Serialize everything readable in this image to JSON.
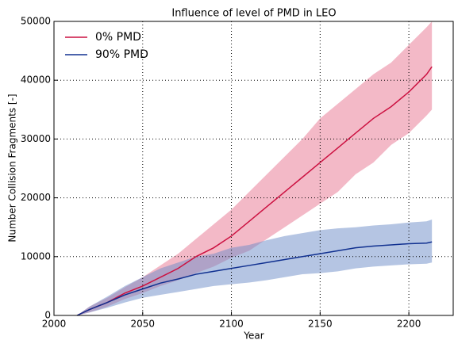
{
  "chart_data": {
    "type": "line",
    "title": "Influence of level of PMD in LEO",
    "xlabel": "Year",
    "ylabel": "Number Collision Fragments [-]",
    "x": [
      2013,
      2020,
      2030,
      2040,
      2050,
      2060,
      2070,
      2080,
      2090,
      2100,
      2110,
      2120,
      2130,
      2140,
      2150,
      2160,
      2170,
      2180,
      2190,
      2200,
      2210,
      2213
    ],
    "series": [
      {
        "name": "0% PMD",
        "color": "#cc1040",
        "band_color": "#e8738f",
        "values": [
          0,
          1000,
          2200,
          3800,
          5000,
          6500,
          8000,
          10000,
          11500,
          13500,
          16000,
          18500,
          21000,
          23500,
          26000,
          28500,
          31000,
          33500,
          35500,
          38000,
          41000,
          42300
        ],
        "upper": [
          0,
          1500,
          3000,
          4800,
          6500,
          8500,
          10500,
          13000,
          15500,
          18000,
          21000,
          24000,
          27000,
          30000,
          33500,
          36000,
          38500,
          41000,
          43000,
          46000,
          49000,
          50000
        ],
        "lower": [
          0,
          500,
          1500,
          2800,
          3800,
          5000,
          6000,
          7200,
          8300,
          9800,
          11000,
          13000,
          15000,
          17000,
          19000,
          21000,
          24000,
          26000,
          29000,
          31000,
          34000,
          35000
        ]
      },
      {
        "name": "90% PMD",
        "color": "#103090",
        "band_color": "#6b8cc8",
        "values": [
          0,
          1000,
          2200,
          3500,
          4500,
          5500,
          6200,
          7000,
          7500,
          8000,
          8500,
          9000,
          9500,
          10000,
          10500,
          11000,
          11500,
          11800,
          12000,
          12200,
          12300,
          12500
        ],
        "upper": [
          0,
          1500,
          3200,
          5000,
          6500,
          8000,
          9000,
          10000,
          10500,
          11500,
          12000,
          12800,
          13500,
          14000,
          14500,
          14800,
          15000,
          15300,
          15500,
          15800,
          16000,
          16300
        ],
        "lower": [
          0,
          500,
          1300,
          2200,
          3000,
          3500,
          4000,
          4500,
          5000,
          5300,
          5600,
          6000,
          6500,
          7000,
          7200,
          7500,
          8000,
          8300,
          8500,
          8700,
          8800,
          9000
        ]
      }
    ],
    "xlim": [
      2000,
      2225
    ],
    "xticks": [
      2000,
      2050,
      2100,
      2150,
      2200
    ],
    "ylim": [
      0,
      50000
    ],
    "yticks": [
      0,
      10000,
      20000,
      30000,
      40000,
      50000
    ],
    "grid": true,
    "legend": "upper left"
  }
}
